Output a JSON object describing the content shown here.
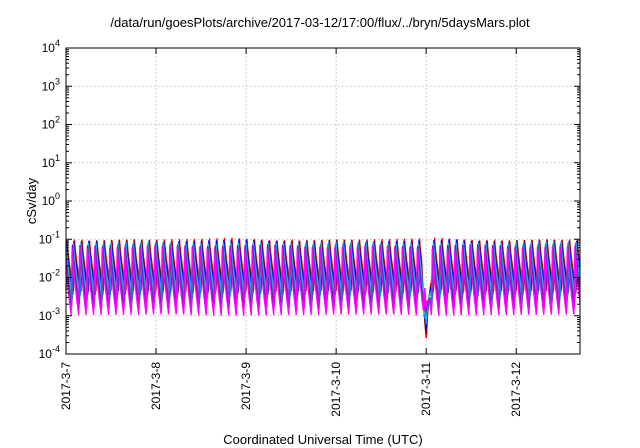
{
  "chart_data": {
    "type": "line",
    "title": "/data/run/goesPlots/archive/2017-03-12/17:00/flux/../bryn/5daysMars.plot",
    "xlabel": "Coordinated Universal Time (UTC)",
    "ylabel": "cSv/day",
    "yscale": "log",
    "ylim": [
      0.0001,
      10000
    ],
    "y_ticks": [
      {
        "base": "10",
        "exp": "-4",
        "value": 0.0001
      },
      {
        "base": "10",
        "exp": "-3",
        "value": 0.001
      },
      {
        "base": "10",
        "exp": "-2",
        "value": 0.01
      },
      {
        "base": "10",
        "exp": "-1",
        "value": 0.1
      },
      {
        "base": "10",
        "exp": "0",
        "value": 1
      },
      {
        "base": "10",
        "exp": "1",
        "value": 10
      },
      {
        "base": "10",
        "exp": "2",
        "value": 100
      },
      {
        "base": "10",
        "exp": "3",
        "value": 1000
      },
      {
        "base": "10",
        "exp": "4",
        "value": 10000
      }
    ],
    "x_ticks": [
      "2017-3-7",
      "2017-3-8",
      "2017-3-9",
      "2017-3-10",
      "2017-3-11",
      "2017-3-12"
    ],
    "xlim": [
      "2017-03-07 00:00",
      "2017-03-12 17:00"
    ],
    "grid": true,
    "legend": "none",
    "orbit_period_hours": 2,
    "series": [
      {
        "color": "#ff0000",
        "peak": 0.11,
        "trough": 0.0045
      },
      {
        "color": "#8b0000",
        "peak": 0.1,
        "trough": 0.004
      },
      {
        "color": "#0000ff",
        "peak": 0.1,
        "trough": 0.0035
      },
      {
        "color": "#1e90ff",
        "peak": 0.09,
        "trough": 0.003
      },
      {
        "color": "#00ced1",
        "peak": 0.085,
        "trough": 0.0025
      },
      {
        "color": "#008b8b",
        "peak": 0.08,
        "trough": 0.002
      },
      {
        "color": "#9400d3",
        "peak": 0.075,
        "trough": 0.0015
      },
      {
        "color": "#ff00ff",
        "peak": 0.07,
        "trough": 0.001
      }
    ],
    "anomaly": {
      "date": "2017-03-11 00:00",
      "min_value": 0.00025
    }
  }
}
